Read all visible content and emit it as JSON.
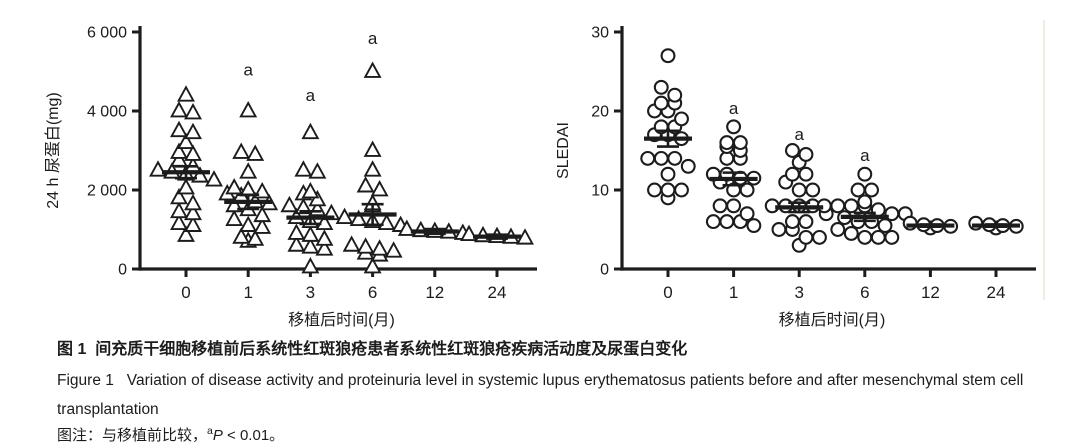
{
  "figure": {
    "caption_cn": "图 1  间充质干细胞移植前后系统性红斑狼疮患者系统性红斑狼疮疾病活动度及尿蛋白变化",
    "caption_en": "Figure 1   Variation of disease activity and proteinuria level in systemic lupus erythematosus patients before and after mesenchymal stem cell transplantation",
    "note": {
      "prefix": "图注：与移植前比较，",
      "sup": "a",
      "italic": "P",
      "suffix": " < 0.01。"
    }
  },
  "colors": {
    "ink": "#1c1c1c",
    "background": "#ffffff",
    "divider": "#efecdf"
  },
  "chart_data": [
    {
      "type": "scatter",
      "panel": "left",
      "marker": "triangle-open",
      "title": "",
      "xlabel": "移植后时间(月)",
      "ylabel": "24 h 尿蛋白(mg)",
      "categories": [
        "0",
        "1",
        "3",
        "6",
        "12",
        "24"
      ],
      "ylim": [
        0,
        6000
      ],
      "ytick_values": [
        0,
        2000,
        4000,
        6000
      ],
      "ytick_labels": [
        "0",
        "2 000",
        "4 000",
        "6 000"
      ],
      "grid": false,
      "legend": null,
      "series": [
        {
          "category": "0",
          "values": [
            4400,
            4000,
            3950,
            3500,
            3450,
            3200,
            2950,
            2900,
            2750,
            2600,
            2500,
            2450,
            2400,
            2350,
            2250,
            2050,
            1800,
            1650,
            1450,
            1400,
            1150,
            1100,
            850
          ]
        },
        {
          "category": "1",
          "values": [
            4000,
            2950,
            2900,
            2450,
            2050,
            2000,
            1950,
            1900,
            1850,
            1700,
            1650,
            1600,
            1500,
            1350,
            1250,
            1100,
            1050,
            800,
            750,
            700
          ]
        },
        {
          "category": "3",
          "values": [
            3450,
            2500,
            2450,
            1950,
            1900,
            1750,
            1600,
            1550,
            1500,
            1400,
            1300,
            1200,
            1150,
            900,
            850,
            750,
            600,
            550,
            500,
            50
          ]
        },
        {
          "category": "6",
          "values": [
            5000,
            3000,
            2500,
            2100,
            2000,
            1650,
            1600,
            1300,
            1250,
            1200,
            1150,
            1100,
            600,
            550,
            500,
            450,
            400,
            350,
            50
          ]
        },
        {
          "category": "12",
          "values": [
            1000,
            970,
            950,
            930,
            900
          ]
        },
        {
          "category": "24",
          "values": [
            870,
            840,
            820,
            800,
            780
          ]
        }
      ],
      "means": [
        2450,
        1700,
        1300,
        1380,
        950,
        820
      ],
      "sem": [
        150,
        180,
        160,
        260,
        60,
        50
      ],
      "annotations": [
        {
          "category": "1",
          "label": "a",
          "y": 4900
        },
        {
          "category": "3",
          "label": "a",
          "y": 4250
        },
        {
          "category": "6",
          "label": "a",
          "y": 5700
        }
      ]
    },
    {
      "type": "scatter",
      "panel": "right",
      "marker": "circle-open",
      "title": "",
      "xlabel": "移植后时间(月)",
      "ylabel": "SLEDAI",
      "categories": [
        "0",
        "1",
        "3",
        "6",
        "12",
        "24"
      ],
      "ylim": [
        0,
        30
      ],
      "ytick_values": [
        0,
        10,
        20,
        30
      ],
      "ytick_labels": [
        "0",
        "10",
        "20",
        "30"
      ],
      "grid": false,
      "legend": null,
      "series": [
        {
          "category": "0",
          "values": [
            27,
            23,
            22,
            21,
            21,
            20,
            20,
            19,
            18,
            18,
            17,
            17,
            16.5,
            14,
            14,
            14,
            13,
            12,
            10,
            10,
            10,
            9
          ]
        },
        {
          "category": "1",
          "values": [
            18,
            16,
            16,
            15.5,
            15,
            14,
            14,
            12,
            12,
            11.5,
            11.5,
            11,
            10,
            10,
            8,
            8,
            7,
            6,
            6,
            6,
            5.5
          ]
        },
        {
          "category": "3",
          "values": [
            15,
            14.5,
            13.5,
            12,
            12,
            11,
            10,
            10,
            8,
            8,
            8,
            8,
            7,
            6,
            6,
            5,
            5,
            4,
            4,
            3
          ]
        },
        {
          "category": "6",
          "values": [
            12,
            10,
            10,
            8.5,
            8,
            8,
            8,
            8,
            7.5,
            7,
            7,
            6.5,
            6,
            6,
            5.5,
            5,
            4.5,
            4,
            4,
            4
          ]
        },
        {
          "category": "12",
          "values": [
            5.8,
            5.6,
            5.5,
            5.4,
            5.2
          ]
        },
        {
          "category": "24",
          "values": [
            5.8,
            5.6,
            5.5,
            5.4,
            5.2
          ]
        }
      ],
      "means": [
        16.5,
        11.4,
        7.8,
        6.6,
        5.5,
        5.5
      ],
      "sem": [
        1.0,
        0.8,
        0.6,
        0.5,
        0.15,
        0.15
      ],
      "annotations": [
        {
          "category": "1",
          "label": "a",
          "y": 19.6
        },
        {
          "category": "3",
          "label": "a",
          "y": 16.3
        },
        {
          "category": "6",
          "label": "a",
          "y": 13.7
        }
      ]
    }
  ]
}
